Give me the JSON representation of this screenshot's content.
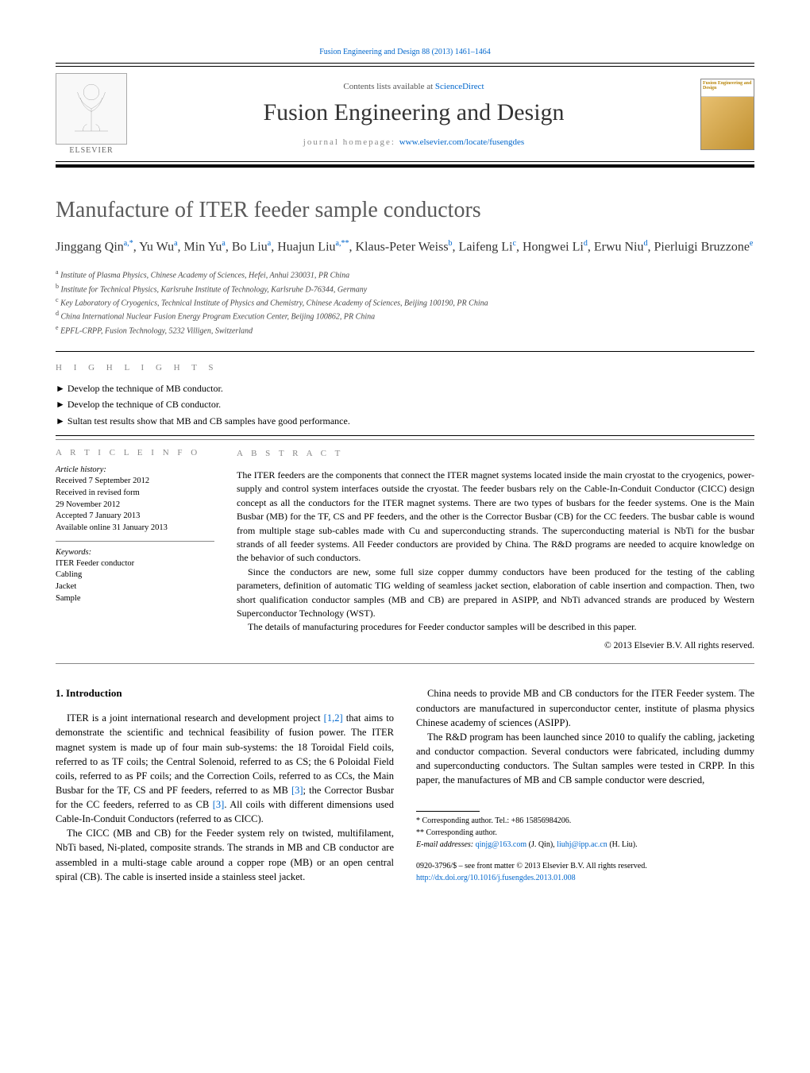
{
  "journal_ref_line": "Fusion Engineering and Design 88 (2013) 1461–1464",
  "masthead": {
    "contents_prefix": "Contents lists available at ",
    "sciencedirect": "ScienceDirect",
    "journal_name": "Fusion Engineering and Design",
    "homepage_prefix": "journal homepage: ",
    "homepage_url": "www.elsevier.com/locate/fusengdes",
    "publisher_word": "ELSEVIER",
    "cover_label": "Fusion Engineering and Design"
  },
  "article": {
    "title": "Manufacture of ITER feeder sample conductors",
    "authors_html": "Jinggang Qin<sup>a,*</sup>, Yu Wu<sup>a</sup>, Min Yu<sup>a</sup>, Bo Liu<sup>a</sup>, Huajun Liu<sup>a,**</sup>, Klaus-Peter Weiss<sup>b</sup>, Laifeng Li<sup>c</sup>, Hongwei Li<sup>d</sup>, Erwu Niu<sup>d</sup>, Pierluigi Bruzzone<sup>e</sup>",
    "affiliations": [
      "a Institute of Plasma Physics, Chinese Academy of Sciences, Hefei, Anhui 230031, PR China",
      "b Institute for Technical Physics, Karlsruhe Institute of Technology, Karlsruhe D-76344, Germany",
      "c Key Laboratory of Cryogenics, Technical Institute of Physics and Chemistry, Chinese Academy of Sciences, Beijing 100190, PR China",
      "d China International Nuclear Fusion Energy Program Execution Center, Beijing 100862, PR China",
      "e EPFL-CRPP, Fusion Technology, 5232 Villigen, Switzerland"
    ]
  },
  "highlights": {
    "heading": "h i g h l i g h t s",
    "items": [
      "Develop the technique of MB conductor.",
      "Develop the technique of CB conductor.",
      "Sultan test results show that MB and CB samples have good performance."
    ]
  },
  "article_info": {
    "heading": "a r t i c l e   i n f o",
    "history_label": "Article history:",
    "history": [
      "Received 7 September 2012",
      "Received in revised form",
      "29 November 2012",
      "Accepted 7 January 2013",
      "Available online 31 January 2013"
    ],
    "keywords_label": "Keywords:",
    "keywords": [
      "ITER Feeder conductor",
      "Cabling",
      "Jacket",
      "Sample"
    ]
  },
  "abstract": {
    "heading": "a b s t r a c t",
    "paragraphs": [
      "The ITER feeders are the components that connect the ITER magnet systems located inside the main cryostat to the cryogenics, power-supply and control system interfaces outside the cryostat. The feeder busbars rely on the Cable-In-Conduit Conductor (CICC) design concept as all the conductors for the ITER magnet systems. There are two types of busbars for the feeder systems. One is the Main Busbar (MB) for the TF, CS and PF feeders, and the other is the Corrector Busbar (CB) for the CC feeders. The busbar cable is wound from multiple stage sub-cables made with Cu and superconducting strands. The superconducting material is NbTi for the busbar strands of all feeder systems. All Feeder conductors are provided by China. The R&D programs are needed to acquire knowledge on the behavior of such conductors.",
      "Since the conductors are new, some full size copper dummy conductors have been produced for the testing of the cabling parameters, definition of automatic TIG welding of seamless jacket section, elaboration of cable insertion and compaction. Then, two short qualification conductor samples (MB and CB) are prepared in ASIPP, and NbTi advanced strands are produced by Western Superconductor Technology (WST).",
      "The details of manufacturing procedures for Feeder conductor samples will be described in this paper."
    ],
    "copyright": "© 2013 Elsevier B.V. All rights reserved."
  },
  "body": {
    "section_no": "1.",
    "section_title": "Introduction",
    "col1_p1_pre": "ITER is a joint international research and development project ",
    "col1_ref1": "[1,2]",
    "col1_p1_mid": " that aims to demonstrate the scientific and technical feasibility of fusion power. The ITER magnet system is made up of four main sub-systems: the 18 Toroidal Field coils, referred to as TF coils; the Central Solenoid, referred to as CS; the 6 Poloidal Field coils, referred to as PF coils; and the Correction Coils, referred to as CCs, the Main Busbar for the TF, CS and PF feeders, referred to as MB ",
    "col1_ref2": "[3]",
    "col1_p1_mid2": "; the Corrector Busbar for the CC feeders, referred to as CB ",
    "col1_ref3": "[3]",
    "col1_p1_post": ". All ",
    "col2_p1": "coils with different dimensions used Cable-In-Conduit Conductors (referred to as CICC).",
    "col2_p2": "The CICC (MB and CB) for the Feeder system rely on twisted, multifilament, NbTi based, Ni-plated, composite strands. The strands in MB and CB conductor are assembled in a multi-stage cable around a copper rope (MB) or an open central spiral (CB). The cable is inserted inside a stainless steel jacket.",
    "col2_p3": "China needs to provide MB and CB conductors for the ITER Feeder system. The conductors are manufactured in superconductor center, institute of plasma physics Chinese academy of sciences (ASIPP).",
    "col2_p4": "The R&D program has been launched since 2010 to qualify the cabling, jacketing and conductor compaction. Several conductors were fabricated, including dummy and superconducting conductors. The Sultan samples were tested in CRPP. In this paper, the manufactures of MB and CB sample conductor were descried,"
  },
  "footnotes": {
    "corr1": "* Corresponding author. Tel.: +86 15856984206.",
    "corr2": "** Corresponding author.",
    "email_label": "E-mail addresses: ",
    "email1": "qinjg@163.com",
    "email1_who": " (J. Qin), ",
    "email2": "liuhj@ipp.ac.cn",
    "email2_who": " (H. Liu)."
  },
  "footer": {
    "issn_line": "0920-3796/$ – see front matter © 2013 Elsevier B.V. All rights reserved.",
    "doi": "http://dx.doi.org/10.1016/j.fusengdes.2013.01.008"
  },
  "colors": {
    "link": "#0066cc",
    "heading_gray": "#888888",
    "title_gray": "#5a5a5a",
    "text": "#000000"
  }
}
